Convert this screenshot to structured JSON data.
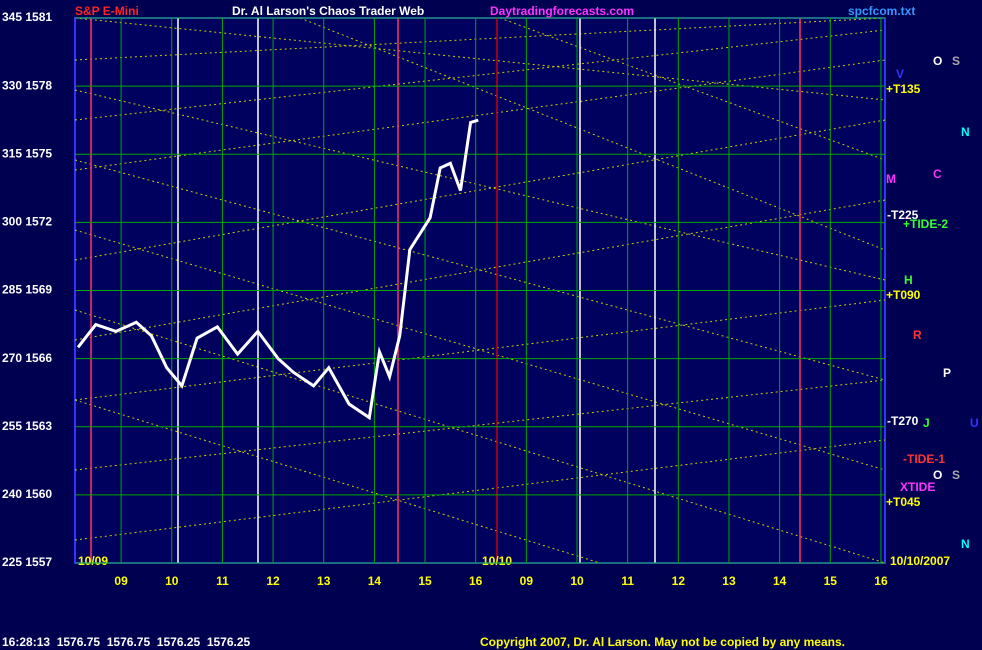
{
  "chart_data": {
    "type": "line",
    "title": "Dr. Al Larson's Chaos Trader Web",
    "subtitle": "S&P E-Mini",
    "site": "Daytradingforecasts.com",
    "file": "spcfcom.txt",
    "status": "16:28:13  1576.75  1576.75  1576.25  1576.25",
    "copyright": "Copyright 2007, Dr. Al Larson. May not be copied by any means.",
    "date_labels": [
      "10/09",
      "10/10",
      "10/10/2007"
    ],
    "ylim": [
      1557,
      1581
    ],
    "yticks": [
      {
        "value": 1581,
        "label": "345 1581"
      },
      {
        "value": 1578,
        "label": "330 1578"
      },
      {
        "value": 1575,
        "label": "315 1575"
      },
      {
        "value": 1572,
        "label": "300 1572"
      },
      {
        "value": 1569,
        "label": "285 1569"
      },
      {
        "value": 1566,
        "label": "270 1566"
      },
      {
        "value": 1563,
        "label": "255 1563"
      },
      {
        "value": 1560,
        "label": "240 1560"
      },
      {
        "value": 1557,
        "label": "225 1557"
      }
    ],
    "xlim": [
      0.09,
      16.08
    ],
    "xticks": [
      {
        "value": 1,
        "label": "09"
      },
      {
        "value": 2,
        "label": "10"
      },
      {
        "value": 3,
        "label": "11"
      },
      {
        "value": 4,
        "label": "12"
      },
      {
        "value": 5,
        "label": "13"
      },
      {
        "value": 6,
        "label": "14"
      },
      {
        "value": 7,
        "label": "15"
      },
      {
        "value": 8,
        "label": "16"
      },
      {
        "value": 9,
        "label": "09"
      },
      {
        "value": 10,
        "label": "10"
      },
      {
        "value": 11,
        "label": "11"
      },
      {
        "value": 12,
        "label": "12"
      },
      {
        "value": 13,
        "label": "13"
      },
      {
        "value": 14,
        "label": "14"
      },
      {
        "value": 15,
        "label": "15"
      },
      {
        "value": 16,
        "label": "16"
      }
    ],
    "grid": true,
    "series": [
      {
        "name": "S&P E-Mini",
        "color": "#ffffff",
        "x": [
          0.15,
          0.5,
          0.9,
          1.3,
          1.6,
          1.9,
          2.2,
          2.5,
          2.9,
          3.3,
          3.7,
          4.1,
          4.4,
          4.8,
          5.1,
          5.5,
          5.9,
          6.1,
          6.3,
          6.5,
          6.7,
          6.9,
          7.1,
          7.3,
          7.5,
          7.7,
          7.9,
          8.05
        ],
        "values": [
          1566.5,
          1567.5,
          1567.2,
          1567.6,
          1567.0,
          1565.6,
          1564.8,
          1566.9,
          1567.4,
          1566.2,
          1567.2,
          1566.0,
          1565.4,
          1564.8,
          1565.6,
          1564.0,
          1563.4,
          1566.3,
          1565.2,
          1567.0,
          1570.8,
          1571.5,
          1572.2,
          1574.4,
          1574.6,
          1573.4,
          1576.4,
          1576.5
        ]
      }
    ],
    "annotations": [
      "+T135",
      "M",
      "-T225",
      "+TIDE-2",
      "+T090",
      "-T270",
      "-TIDE-1",
      "XTIDE",
      "+T045",
      "V",
      "O",
      "S",
      "N",
      "C",
      "H",
      "R",
      "P",
      "J",
      "U",
      "O",
      "S",
      "N"
    ]
  }
}
